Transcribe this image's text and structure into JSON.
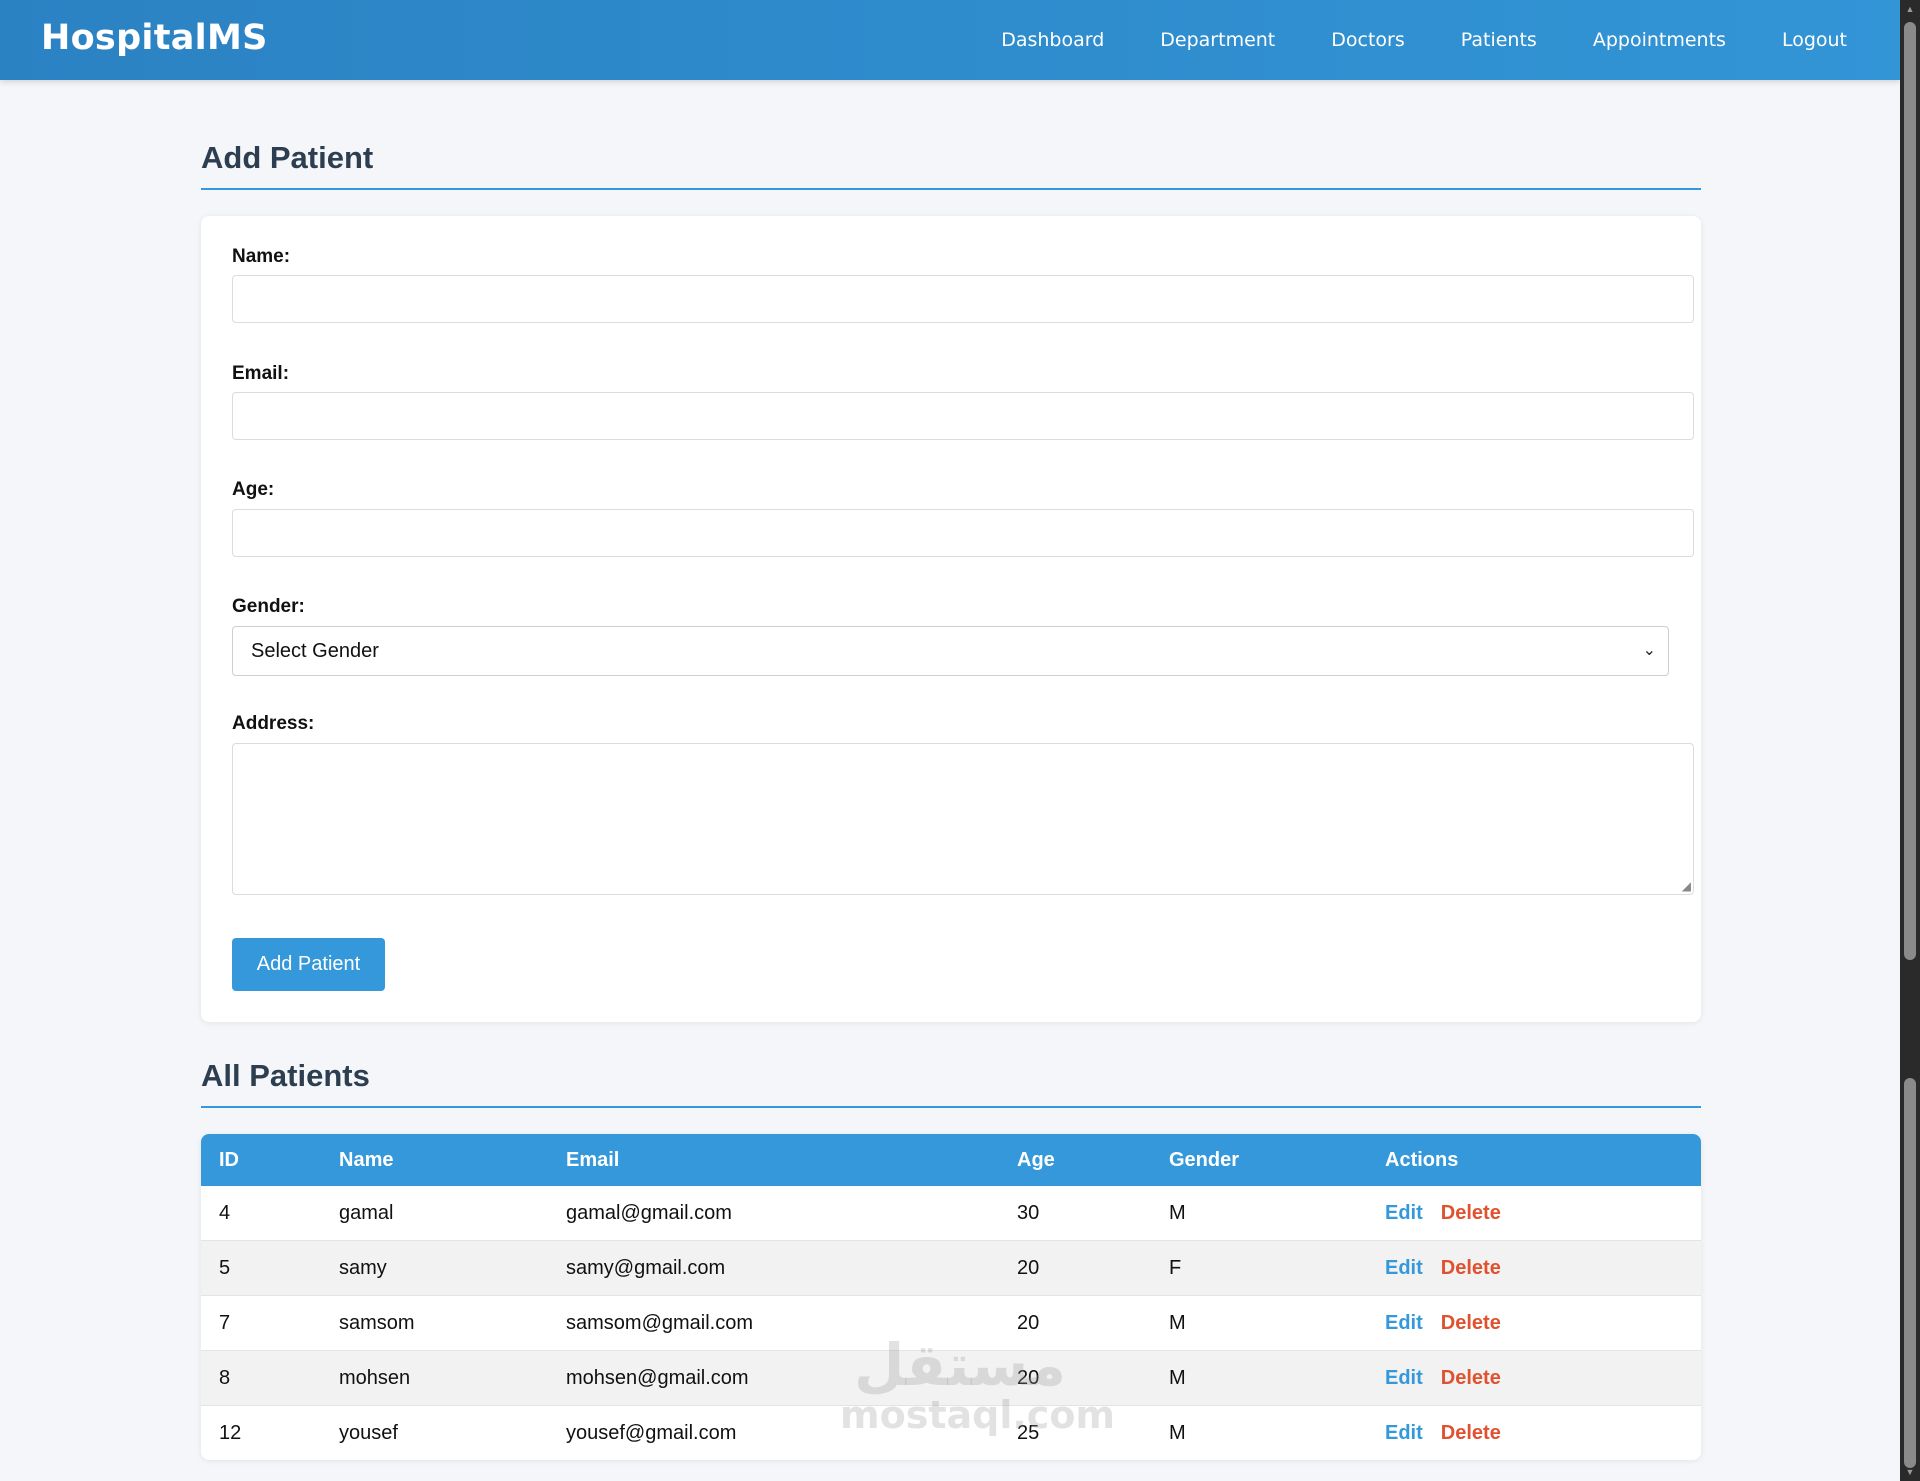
{
  "navbar": {
    "brand": "HospitalMS",
    "links": [
      "Dashboard",
      "Department",
      "Doctors",
      "Patients",
      "Appointments",
      "Logout"
    ]
  },
  "add_section": {
    "title": "Add Patient",
    "form": {
      "name_label": "Name:",
      "email_label": "Email:",
      "age_label": "Age:",
      "gender_label": "Gender:",
      "gender_selected": "Select Gender",
      "address_label": "Address:",
      "submit_label": "Add Patient"
    }
  },
  "list_section": {
    "title": "All Patients",
    "columns": [
      "ID",
      "Name",
      "Email",
      "Age",
      "Gender",
      "Actions"
    ],
    "rows": [
      {
        "id": "4",
        "name": "gamal",
        "email": "gamal@gmail.com",
        "age": "30",
        "gender": "M"
      },
      {
        "id": "5",
        "name": "samy",
        "email": "samy@gmail.com",
        "age": "20",
        "gender": "F"
      },
      {
        "id": "7",
        "name": "samsom",
        "email": "samsom@gmail.com",
        "age": "20",
        "gender": "M"
      },
      {
        "id": "8",
        "name": "mohsen",
        "email": "mohsen@gmail.com",
        "age": "20",
        "gender": "M"
      },
      {
        "id": "12",
        "name": "yousef",
        "email": "yousef@gmail.com",
        "age": "25",
        "gender": "M"
      }
    ],
    "edit_label": "Edit",
    "delete_label": "Delete"
  },
  "watermark": {
    "arabic": "مستقل",
    "latin": "mostaql.com"
  },
  "colors": {
    "primary": "#3498db",
    "danger": "#e0522f",
    "heading": "#2c3e50"
  }
}
